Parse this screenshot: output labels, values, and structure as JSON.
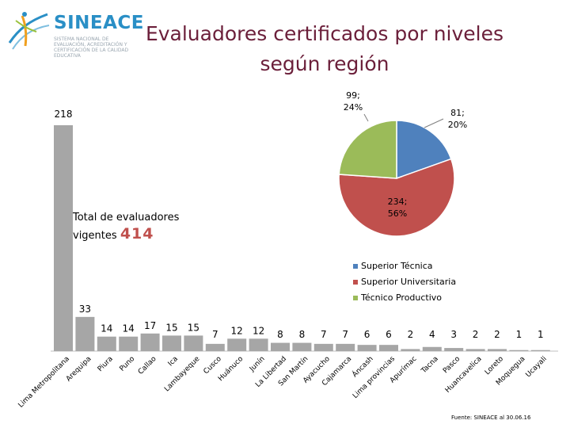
{
  "brand": {
    "name": "SINEACE",
    "subtitle": "SISTEMA NACIONAL DE EVALUACIÓN, ACREDITACIÓN Y CERTIFICACIÓN DE LA CALIDAD EDUCATIVA"
  },
  "title_line1": "Evaluadores certificados por niveles",
  "title_line2": "según región",
  "total": {
    "label_line1": "Total de evaluadores",
    "label_line2": "vigentes",
    "value": "414"
  },
  "footer": "Fuente: SINEACE al 30.06.16",
  "colors": {
    "bar": "#a6a6a6",
    "tecnica": "#4f81bd",
    "universitaria": "#c0504d",
    "productivo": "#9bbb59",
    "title": "#6b1f3a"
  },
  "chart_data": [
    {
      "type": "bar",
      "categories": [
        "Lima Metropolitana",
        "Arequipa",
        "Piura",
        "Puno",
        "Callao",
        "Ica",
        "Lambayeque",
        "Cusco",
        "Huánuco",
        "Junín",
        "La Libertad",
        "San Martín",
        "Ayacucho",
        "Cajamarca",
        "Áncash",
        "Lima provincias",
        "Apurímac",
        "Tacna",
        "Pasco",
        "Huancavelica",
        "Loreto",
        "Moquegua",
        "Ucayali"
      ],
      "values": [
        218,
        33,
        14,
        14,
        17,
        15,
        15,
        7,
        12,
        12,
        8,
        8,
        7,
        7,
        6,
        6,
        2,
        4,
        3,
        2,
        2,
        1,
        1
      ],
      "value_labels": [
        "218",
        "33",
        "14",
        "14",
        "17",
        "15",
        "15",
        "7",
        "12",
        "12",
        "8",
        "8",
        "7",
        "7",
        "6",
        "6",
        "2",
        "4",
        "3",
        "2",
        "2",
        "1",
        "1"
      ]
    },
    {
      "type": "pie",
      "slices": [
        {
          "name": "Superior Técnica",
          "value": 81,
          "percent": 20,
          "label": "81;",
          "pct_label": "20%",
          "color": "#4f81bd"
        },
        {
          "name": "Superior Universitaria",
          "value": 234,
          "percent": 56,
          "label": "234;",
          "pct_label": "56%",
          "color": "#c0504d"
        },
        {
          "name": "Técnico Productivo",
          "value": 99,
          "percent": 24,
          "label": "99;",
          "pct_label": "24%",
          "color": "#9bbb59"
        }
      ],
      "legend": [
        "Superior Técnica",
        "Superior Universitaria",
        "Técnico Productivo"
      ]
    }
  ]
}
